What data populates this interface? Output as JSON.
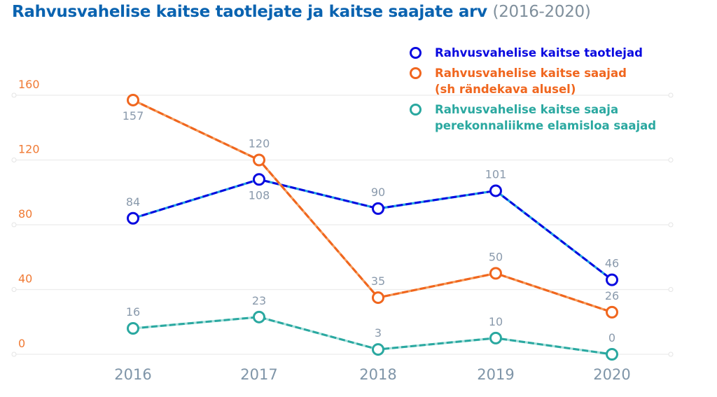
{
  "chart_data": {
    "type": "line",
    "title": "Rahvusvahelise kaitse taotlejate ja kaitse saajate arv",
    "subtitle": "(2016-2020)",
    "xlabel": "",
    "ylabel": "",
    "categories": [
      "2016",
      "2017",
      "2018",
      "2019",
      "2020"
    ],
    "y_ticks": [
      "0",
      "40",
      "80",
      "120",
      "160"
    ],
    "ylim": [
      0,
      160
    ],
    "grid": true,
    "legend_position": "top-right",
    "series": [
      {
        "name": "Rahvusvahelise kaitse taotlejad",
        "color": "#0a0ae0",
        "dash_color": "#1fa3e0",
        "values": [
          84,
          108,
          90,
          101,
          46
        ]
      },
      {
        "name": "Rahvusvahelise kaitse saajad\n(sh rändekava alusel)",
        "color": "#f0661e",
        "dash_color": "#f59a5a",
        "values": [
          157,
          120,
          35,
          50,
          26
        ]
      },
      {
        "name": "Rahvusvahelise kaitse saaja\nperekonnaliikme elamisloa saajad",
        "color": "#2aa8a0",
        "dash_color": "#a6e0dc",
        "values": [
          16,
          23,
          3,
          10,
          0
        ]
      }
    ]
  }
}
